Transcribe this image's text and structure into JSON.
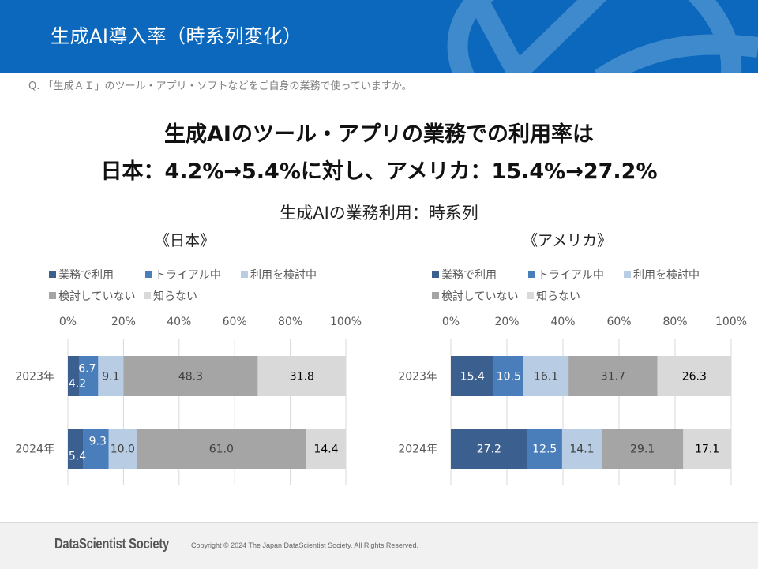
{
  "header": {
    "title": "生成AI導入率（時系列変化）"
  },
  "question": "Q. 「生成ＡＩ」のツール・アプリ・ソフトなどをご自身の業務で使っていますか。",
  "headline": {
    "line1": "生成AIのツール・アプリの業務での利用率は",
    "line2": "日本：4.2%→5.4%に対し、アメリカ：15.4%→27.2%"
  },
  "subtitle": "生成AIの業務利用：時系列",
  "colors": {
    "header_bg": "#0b68bd",
    "series": [
      "#3b5f8e",
      "#4a7ebb",
      "#b8cce4",
      "#a5a5a5",
      "#d9d9d9"
    ],
    "label_text": [
      "#ffffff",
      "#ffffff",
      "#404040",
      "#404040",
      "#000000"
    ]
  },
  "legend": [
    "業務で利用",
    "トライアル中",
    "利用を検討中",
    "検討していない",
    "知らない"
  ],
  "chart_data": [
    {
      "type": "bar",
      "orientation": "horizontal",
      "stacked": "percent",
      "title": "《日本》",
      "categories": [
        "2023年",
        "2024年"
      ],
      "xlim": [
        0,
        100
      ],
      "xticks": [
        "0%",
        "20%",
        "40%",
        "60%",
        "80%",
        "100%"
      ],
      "grid": true,
      "legend_position": "top",
      "series": [
        {
          "name": "業務で利用",
          "values": [
            4.2,
            5.4
          ],
          "labels": [
            "4.2",
            "5.4"
          ]
        },
        {
          "name": "トライアル中",
          "values": [
            6.7,
            9.3
          ],
          "labels": [
            "6.7",
            "9.3"
          ]
        },
        {
          "name": "利用を検討中",
          "values": [
            9.1,
            10.0
          ],
          "labels": [
            "9.1",
            "10.0"
          ]
        },
        {
          "name": "検討していない",
          "values": [
            48.3,
            61.0
          ],
          "labels": [
            "48.3",
            "61.0"
          ]
        },
        {
          "name": "知らない",
          "values": [
            31.8,
            14.4
          ],
          "labels": [
            "31.8",
            "14.4"
          ]
        }
      ]
    },
    {
      "type": "bar",
      "orientation": "horizontal",
      "stacked": "percent",
      "title": "《アメリカ》",
      "categories": [
        "2023年",
        "2024年"
      ],
      "xlim": [
        0,
        100
      ],
      "xticks": [
        "0%",
        "20%",
        "40%",
        "60%",
        "80%",
        "100%"
      ],
      "grid": true,
      "legend_position": "top",
      "series": [
        {
          "name": "業務で利用",
          "values": [
            15.4,
            27.2
          ],
          "labels": [
            "15.4",
            "27.2"
          ]
        },
        {
          "name": "トライアル中",
          "values": [
            10.5,
            12.5
          ],
          "labels": [
            "10.5",
            "12.5"
          ]
        },
        {
          "name": "利用を検討中",
          "values": [
            16.1,
            14.1
          ],
          "labels": [
            "16.1",
            "14.1"
          ]
        },
        {
          "name": "検討していない",
          "values": [
            31.7,
            29.1
          ],
          "labels": [
            "31.7",
            "29.1"
          ]
        },
        {
          "name": "知らない",
          "values": [
            26.3,
            17.1
          ],
          "labels": [
            "26.3",
            "17.1"
          ]
        }
      ]
    }
  ],
  "footer": {
    "logo": "DataScientist Society",
    "copyright": "Copyright © 2024 The Japan DataScientist Society. All Rights Reserved."
  }
}
